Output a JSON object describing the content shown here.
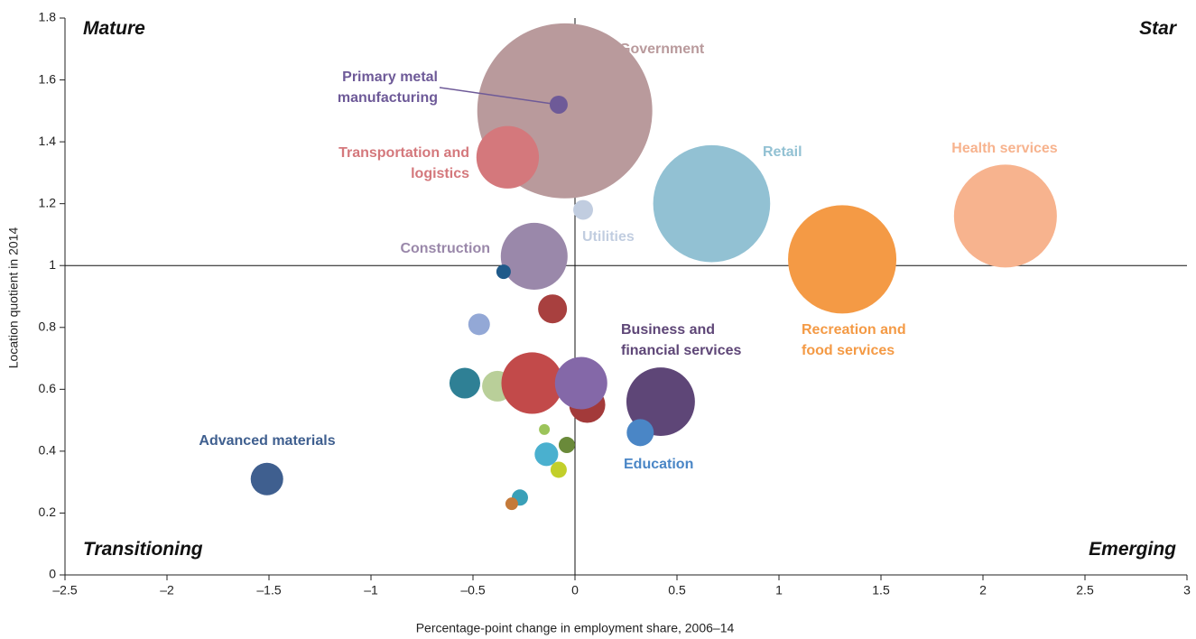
{
  "chart_data": {
    "type": "bubble",
    "x_label": "Percentage-point change in employment share, 2006–14",
    "y_label": "Location quotient in 2014",
    "annotations": [
      "Mature",
      "Star",
      "Transitioning",
      "Emerging"
    ],
    "crosshair": {
      "x": 0,
      "y": 1
    },
    "xlim": [
      -2.5,
      3
    ],
    "ylim": [
      0,
      1.8
    ],
    "xticks": [
      {
        "value": -2.5,
        "label": "–2.5"
      },
      {
        "value": -2,
        "label": "–2"
      },
      {
        "value": -1.5,
        "label": "–1.5"
      },
      {
        "value": -1,
        "label": "–1"
      },
      {
        "value": -0.5,
        "label": "–0.5"
      },
      0,
      0.5,
      1,
      1.5,
      2,
      2.5,
      3
    ],
    "yticks": [
      0,
      0.2,
      0.4,
      0.6,
      0.8,
      1,
      1.2,
      1.4,
      1.6,
      1.8
    ],
    "labels": [
      "Government",
      "Transportation and logistics",
      "Primary metal manufacturing",
      "Utilities",
      "Retail",
      "Health services",
      "Recreation and food services",
      "Construction",
      null,
      null,
      null,
      null,
      null,
      null,
      null,
      null,
      null,
      "Business and financial services",
      "Education",
      null,
      null,
      null,
      null,
      null,
      null,
      "Advanced materials"
    ],
    "x": [
      -0.05,
      -0.33,
      -0.08,
      0.04,
      0.67,
      2.11,
      1.31,
      -0.2,
      -0.35,
      -0.11,
      -0.47,
      -0.54,
      -0.38,
      -0.19,
      -0.21,
      0.06,
      0.03,
      0.42,
      0.32,
      -0.15,
      -0.04,
      -0.14,
      -0.08,
      -0.27,
      -0.31,
      -1.51
    ],
    "y": [
      1.5,
      1.35,
      1.52,
      1.18,
      1.2,
      1.16,
      1.02,
      1.03,
      0.98,
      0.86,
      0.81,
      0.62,
      0.61,
      0.66,
      0.62,
      0.55,
      0.62,
      0.56,
      0.46,
      0.47,
      0.42,
      0.39,
      0.34,
      0.25,
      0.23,
      0.31
    ],
    "sizes": [
      94,
      12,
      1,
      1.2,
      42,
      32.5,
      36,
      13.7,
      0.64,
      2.56,
      1.44,
      2.9,
      2.9,
      2.25,
      11.6,
      4,
      8.4,
      14.4,
      2.25,
      0.36,
      0.81,
      1.7,
      0.81,
      0.81,
      0.49,
      3.24
    ],
    "colors": [
      "#b99a9c",
      "#d4787c",
      "#6e5a98",
      "#c1cde0",
      "#92c1d3",
      "#f7b38e",
      "#f49a45",
      "#9a88aa",
      "#1f5a8a",
      "#a8403f",
      "#93a8d6",
      "#2f8095",
      "#b9cf99",
      "#f0a040",
      "#c24a4a",
      "#a33a3a",
      "#8468a8",
      "#5e4677",
      "#4a86c6",
      "#9cc45a",
      "#6a8a3a",
      "#4ab0cf",
      "#c2cf2a",
      "#3aa0b8",
      "#c47a3a",
      "#3f5f8f"
    ]
  }
}
